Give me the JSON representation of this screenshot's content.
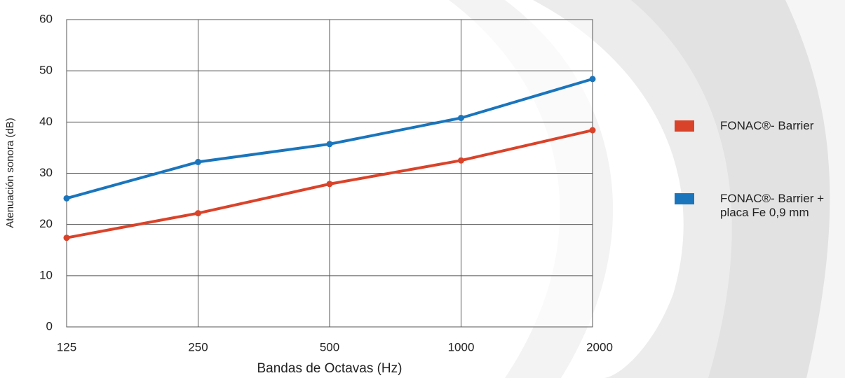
{
  "chart_data": {
    "type": "line",
    "ylabel": "Atenuación sonora (dB)",
    "xlabel": "Bandas de Octavas (Hz)",
    "categories": [
      "125",
      "250",
      "500",
      "1000",
      "2000"
    ],
    "series": [
      {
        "name": "FONAC®- Barrier",
        "color": "#d9432a",
        "values": [
          17.4,
          22.2,
          27.9,
          32.5,
          38.4
        ]
      },
      {
        "name": "FONAC®- Barrier + placa Fe 0,9 mm",
        "color": "#1a75bc",
        "values": [
          25.1,
          32.2,
          35.7,
          40.8,
          48.4
        ]
      }
    ],
    "ylim": [
      0,
      60
    ],
    "yticks": [
      0,
      10,
      20,
      30,
      40,
      50,
      60
    ],
    "grid": true
  }
}
